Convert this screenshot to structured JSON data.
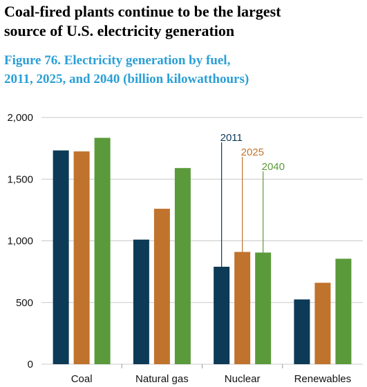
{
  "chart_data": {
    "type": "bar",
    "title": [
      "Coal-fired plants continue to be the largest",
      "source of U.S. electricity generation"
    ],
    "subtitle": [
      "Figure 76. Electricity generation by fuel,",
      "2011, 2025, and 2040 (billion kilowatthours)"
    ],
    "categories": [
      "Coal",
      "Natural gas",
      "Nuclear",
      "Renewables"
    ],
    "series": [
      {
        "name": "2011",
        "color": "#0d3a56",
        "values": [
          1733,
          1010,
          790,
          525
        ]
      },
      {
        "name": "2025",
        "color": "#c0732d",
        "values": [
          1725,
          1260,
          910,
          660
        ]
      },
      {
        "name": "2040",
        "color": "#5a9a3a",
        "values": [
          1835,
          1590,
          905,
          855
        ]
      }
    ],
    "ylim": [
      0,
      2000
    ],
    "yticks": [
      0,
      500,
      {
        "value": 1000,
        "label": "1,000"
      },
      {
        "value": 1500,
        "label": "1,500"
      },
      {
        "value": 2000,
        "label": "2,000"
      }
    ],
    "grid": true
  }
}
